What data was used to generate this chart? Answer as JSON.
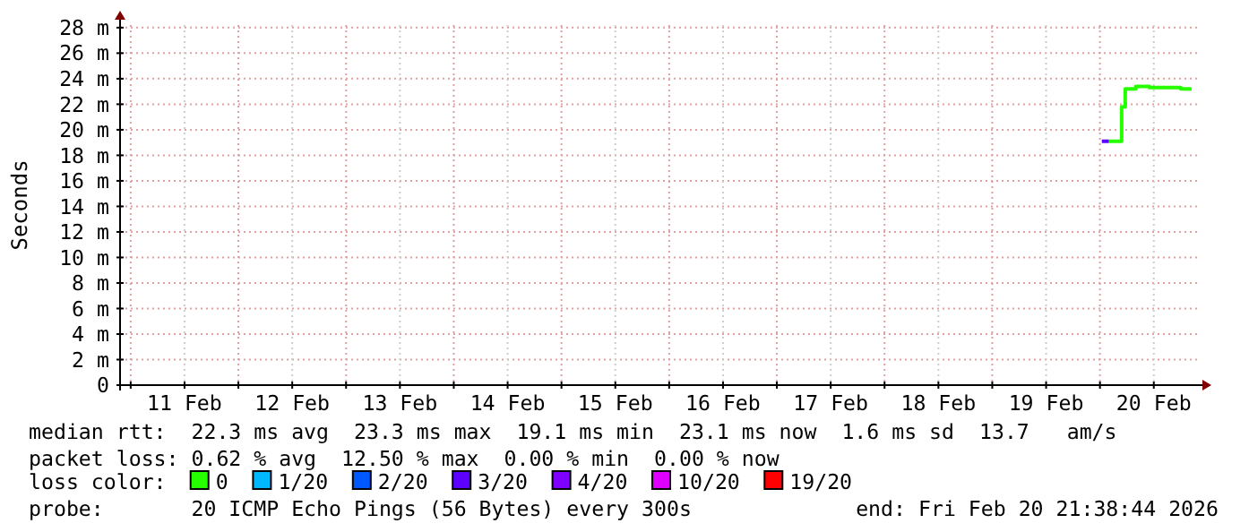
{
  "chart_data": {
    "type": "step",
    "ylabel": "Seconds",
    "x": [
      "2026-02-20T00:25",
      "2026-02-20T02:00",
      "2026-02-20T04:25",
      "2026-02-20T04:50",
      "2026-02-20T05:38",
      "2026-02-20T08:00",
      "2026-02-20T11:00",
      "2026-02-20T15:00",
      "2026-02-20T18:00",
      "2026-02-20T20:25"
    ],
    "series": [
      {
        "name": "0",
        "color": "#26ff00",
        "values": [
          null,
          19.1,
          19.1,
          21.8,
          23.2,
          23.4,
          23.3,
          23.3,
          23.2,
          23.2
        ]
      },
      {
        "name": "1/20",
        "color": "#00b8ff",
        "values": [
          null,
          null,
          null,
          null,
          null,
          null,
          null,
          null,
          null,
          null
        ]
      },
      {
        "name": "2/20",
        "color": "#0059ff",
        "values": [
          null,
          null,
          null,
          null,
          null,
          null,
          null,
          null,
          null,
          null
        ]
      },
      {
        "name": "3/20",
        "color": "#5e00ff",
        "values": [
          19.1,
          19.1,
          null,
          null,
          null,
          null,
          null,
          null,
          null,
          null
        ]
      },
      {
        "name": "4/20",
        "color": "#7e00ff",
        "values": [
          null,
          null,
          null,
          null,
          null,
          null,
          null,
          null,
          null,
          null
        ]
      },
      {
        "name": "10/20",
        "color": "#dd00ff",
        "values": [
          null,
          null,
          null,
          null,
          null,
          null,
          null,
          null,
          null,
          null
        ]
      },
      {
        "name": "19/20",
        "color": "#ff0000",
        "values": [
          null,
          null,
          null,
          null,
          null,
          null,
          null,
          null,
          null,
          null
        ]
      }
    ],
    "xlim": [
      "2026-02-10T21:38",
      "2026-02-20T21:38"
    ],
    "xticks": [
      {
        "value": "2026-02-11T00:00",
        "label": null
      },
      {
        "value": "2026-02-11T12:00",
        "label": "11 Feb"
      },
      {
        "value": "2026-02-12T00:00",
        "label": null
      },
      {
        "value": "2026-02-12T12:00",
        "label": "12 Feb"
      },
      {
        "value": "2026-02-13T00:00",
        "label": null
      },
      {
        "value": "2026-02-13T12:00",
        "label": "13 Feb"
      },
      {
        "value": "2026-02-14T00:00",
        "label": null
      },
      {
        "value": "2026-02-14T12:00",
        "label": "14 Feb"
      },
      {
        "value": "2026-02-15T00:00",
        "label": null
      },
      {
        "value": "2026-02-15T12:00",
        "label": "15 Feb"
      },
      {
        "value": "2026-02-16T00:00",
        "label": null
      },
      {
        "value": "2026-02-16T12:00",
        "label": "16 Feb"
      },
      {
        "value": "2026-02-17T00:00",
        "label": null
      },
      {
        "value": "2026-02-17T12:00",
        "label": "17 Feb"
      },
      {
        "value": "2026-02-18T00:00",
        "label": null
      },
      {
        "value": "2026-02-18T12:00",
        "label": "18 Feb"
      },
      {
        "value": "2026-02-19T00:00",
        "label": null
      },
      {
        "value": "2026-02-19T12:00",
        "label": "19 Feb"
      },
      {
        "value": "2026-02-20T00:00",
        "label": null
      },
      {
        "value": "2026-02-20T12:00",
        "label": "20 Feb"
      }
    ],
    "ylim": [
      0,
      28.2
    ],
    "yticks": [
      0,
      {
        "value": 2,
        "label": "2 m"
      },
      {
        "value": 4,
        "label": "4 m"
      },
      {
        "value": 6,
        "label": "6 m"
      },
      {
        "value": 8,
        "label": "8 m"
      },
      {
        "value": 10,
        "label": "10 m"
      },
      {
        "value": 12,
        "label": "12 m"
      },
      {
        "value": 14,
        "label": "14 m"
      },
      {
        "value": 16,
        "label": "16 m"
      },
      {
        "value": 18,
        "label": "18 m"
      },
      {
        "value": 20,
        "label": "20 m"
      },
      {
        "value": 22,
        "label": "22 m"
      },
      {
        "value": 24,
        "label": "24 m"
      },
      {
        "value": 26,
        "label": "26 m"
      },
      {
        "value": 28,
        "label": "28 m"
      }
    ],
    "grid": true,
    "legend": "bottom",
    "legend_title": "loss color:",
    "annotations": [
      "median rtt:  22.3 ms avg  23.3 ms max  19.1 ms min  23.1 ms now  1.6 ms sd  13.7   am/s",
      "packet loss: 0.62 % avg  12.50 % max  0.00 % min  0.00 % now",
      "probe:       20 ICMP Echo Pings (56 Bytes) every 300s",
      "end: Fri Feb 20 21:38:44 2026"
    ]
  }
}
